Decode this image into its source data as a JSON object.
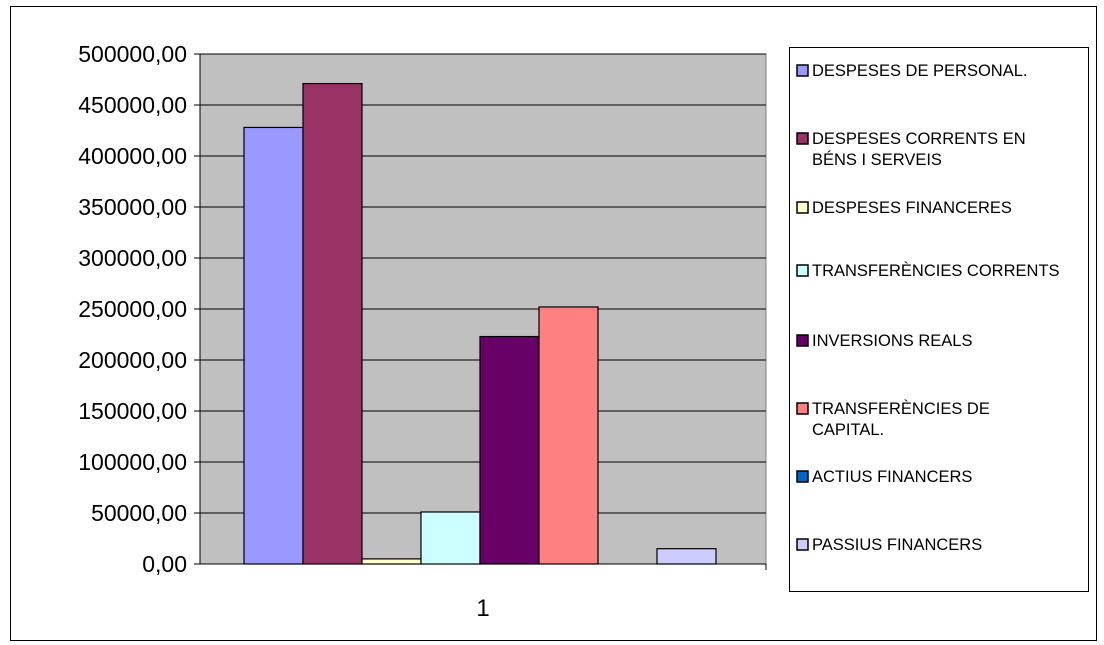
{
  "chart_data": {
    "type": "bar",
    "categories": [
      "1"
    ],
    "series": [
      {
        "name": "DESPESES DE PERSONAL.",
        "values": [
          428000
        ],
        "color": "#9999ff"
      },
      {
        "name": "DESPESES CORRENTS EN BÉNS I SERVEIS",
        "values": [
          471000
        ],
        "color": "#993366"
      },
      {
        "name": "DESPESES FINANCERES",
        "values": [
          5000
        ],
        "color": "#ffffcc"
      },
      {
        "name": "TRANSFERÈNCIES CORRENTS",
        "values": [
          51000
        ],
        "color": "#ccffff"
      },
      {
        "name": "INVERSIONS REALS",
        "values": [
          223000
        ],
        "color": "#660066"
      },
      {
        "name": "TRANSFERÈNCIES DE CAPITAL.",
        "values": [
          252000
        ],
        "color": "#ff8080"
      },
      {
        "name": "ACTIUS FINANCERS",
        "values": [
          0
        ],
        "color": "#0066cc"
      },
      {
        "name": "PASSIUS FINANCERS",
        "values": [
          15000
        ],
        "color": "#ccccff"
      }
    ],
    "ylim": [
      0,
      500000
    ],
    "yticks": [
      "0,00",
      "50000,00",
      "100000,00",
      "150000,00",
      "200000,00",
      "250000,00",
      "300000,00",
      "350000,00",
      "400000,00",
      "450000,00",
      "500000,00"
    ],
    "title": "",
    "xlabel": "",
    "ylabel": "",
    "grid": true,
    "legend_position": "right",
    "plot_background": "#c0c0c0"
  }
}
